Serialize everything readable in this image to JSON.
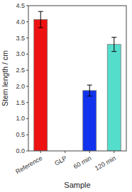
{
  "chart_data": {
    "type": "bar",
    "categories": [
      "Reference",
      "GLP",
      "60 min",
      "120 min"
    ],
    "values": [
      4.07,
      0.0,
      1.87,
      3.3
    ],
    "errors": [
      0.25,
      0.0,
      0.17,
      0.22
    ],
    "colors": [
      "#ee1111",
      "#ffffff",
      "#1133ee",
      "#55ddcc"
    ],
    "xlabel": "Sample",
    "ylabel": "Stem length / cm",
    "ylim": [
      0,
      4.5
    ],
    "yticks": [
      {
        "value": 0.0,
        "label": "0.0"
      },
      0.5,
      {
        "value": 1.0,
        "label": "1.0"
      },
      1.5,
      {
        "value": 2.0,
        "label": "2.0"
      },
      2.5,
      {
        "value": 3.0,
        "label": "3.0"
      },
      3.5,
      {
        "value": 4.0,
        "label": "4.0"
      },
      4.5
    ],
    "grid": false
  }
}
